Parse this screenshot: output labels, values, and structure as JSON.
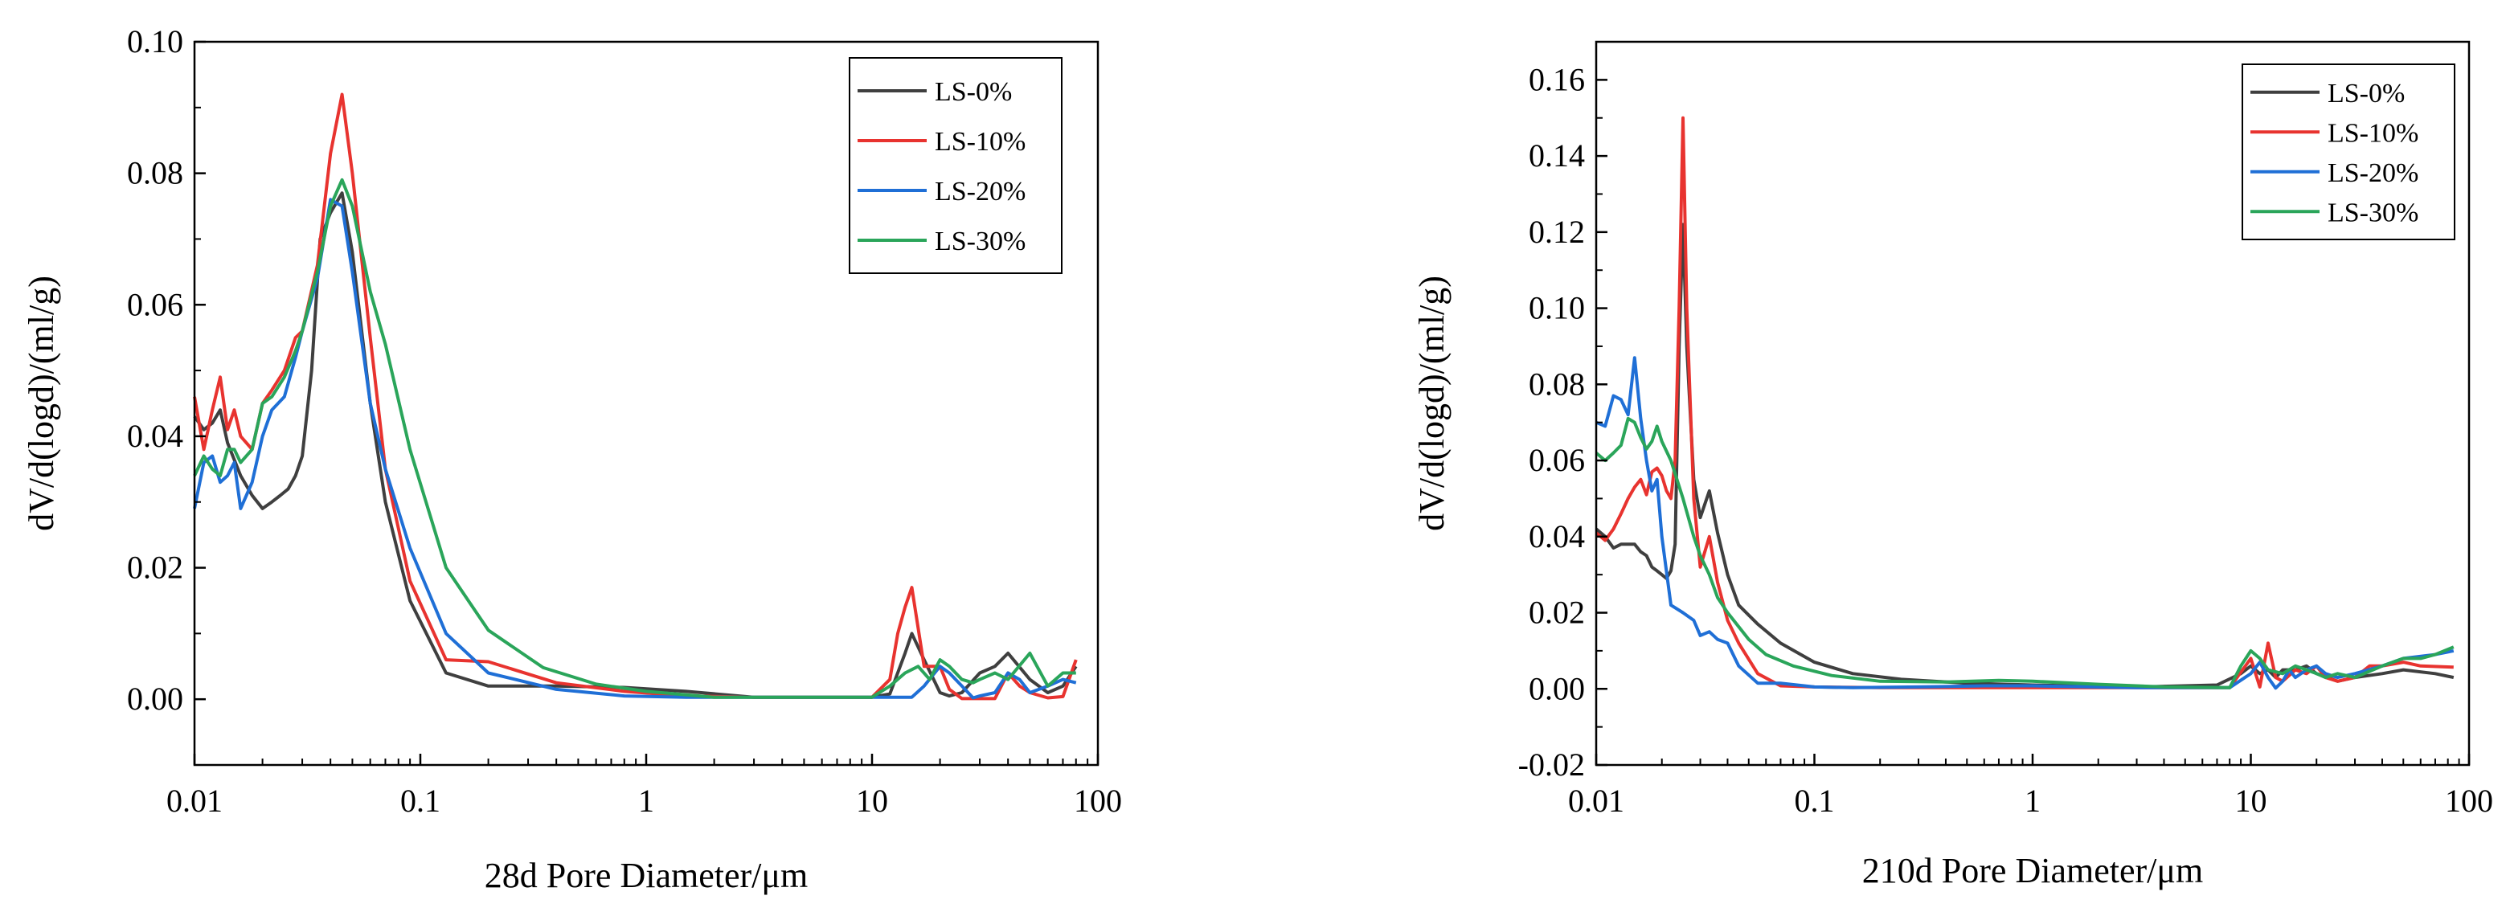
{
  "chart_data": [
    {
      "type": "line",
      "xscale": "log",
      "xlabel": "28d Pore Diameter/μm",
      "ylabel": "dV/d(logd)/(ml/g)",
      "xlim": [
        0.01,
        100
      ],
      "ylim": [
        -0.01,
        0.1
      ],
      "xticks": [
        0.01,
        0.1,
        1,
        10,
        100
      ],
      "xtick_labels": [
        "0.01",
        "0.1",
        "1",
        "10",
        "100"
      ],
      "yticks": [
        0.0,
        0.02,
        0.04,
        0.06,
        0.08,
        0.1
      ],
      "ytick_labels": [
        "0.00",
        "0.02",
        "0.04",
        "0.06",
        "0.08",
        "0.10"
      ],
      "grid": false,
      "legend_position": "top-right",
      "series": [
        {
          "name": "LS-0%",
          "color": "#3f3f3f",
          "x": [
            0.01,
            0.011,
            0.012,
            0.013,
            0.014,
            0.016,
            0.018,
            0.02,
            0.022,
            0.024,
            0.026,
            0.028,
            0.03,
            0.033,
            0.036,
            0.04,
            0.045,
            0.05,
            0.06,
            0.07,
            0.09,
            0.13,
            0.2,
            0.4,
            0.8,
            1.5,
            3,
            6,
            10,
            12,
            14,
            15,
            17,
            20,
            22,
            25,
            30,
            35,
            40,
            50,
            60,
            70,
            80
          ],
          "y": [
            0.043,
            0.041,
            0.042,
            0.044,
            0.039,
            0.034,
            0.031,
            0.029,
            0.03,
            0.031,
            0.032,
            0.034,
            0.037,
            0.05,
            0.07,
            0.074,
            0.077,
            0.068,
            0.045,
            0.03,
            0.015,
            0.004,
            0.002,
            0.002,
            0.0018,
            0.0012,
            0.0003,
            0.0003,
            0.0003,
            0.0008,
            0.007,
            0.01,
            0.006,
            0.001,
            0.0005,
            0.001,
            0.004,
            0.005,
            0.007,
            0.003,
            0.001,
            0.002,
            0.005
          ]
        },
        {
          "name": "LS-10%",
          "color": "#e8332f",
          "x": [
            0.01,
            0.011,
            0.012,
            0.013,
            0.014,
            0.015,
            0.016,
            0.018,
            0.02,
            0.022,
            0.025,
            0.028,
            0.03,
            0.035,
            0.04,
            0.045,
            0.05,
            0.06,
            0.07,
            0.09,
            0.13,
            0.2,
            0.4,
            0.8,
            1.5,
            3,
            6,
            10,
            12,
            13,
            14,
            15,
            17,
            20,
            22,
            25,
            30,
            35,
            40,
            45,
            50,
            60,
            70,
            80
          ],
          "y": [
            0.046,
            0.038,
            0.044,
            0.049,
            0.041,
            0.044,
            0.04,
            0.038,
            0.045,
            0.047,
            0.05,
            0.055,
            0.056,
            0.066,
            0.083,
            0.092,
            0.08,
            0.055,
            0.035,
            0.018,
            0.006,
            0.0057,
            0.0025,
            0.0012,
            0.0005,
            0.0003,
            0.0003,
            0.0003,
            0.003,
            0.01,
            0.014,
            0.017,
            0.005,
            0.005,
            0.0015,
            0.0001,
            0.0001,
            0.0001,
            0.004,
            0.002,
            0.001,
            0.0002,
            0.0004,
            0.006
          ]
        },
        {
          "name": "LS-20%",
          "color": "#1f6fd6",
          "x": [
            0.01,
            0.011,
            0.012,
            0.013,
            0.014,
            0.015,
            0.016,
            0.018,
            0.02,
            0.022,
            0.025,
            0.028,
            0.03,
            0.035,
            0.04,
            0.045,
            0.05,
            0.06,
            0.07,
            0.09,
            0.13,
            0.2,
            0.4,
            0.8,
            1.5,
            3,
            6,
            10,
            12,
            14,
            15,
            17,
            20,
            22,
            25,
            28,
            30,
            35,
            40,
            45,
            50,
            60,
            70,
            80
          ],
          "y": [
            0.029,
            0.036,
            0.037,
            0.033,
            0.034,
            0.036,
            0.029,
            0.033,
            0.04,
            0.044,
            0.046,
            0.052,
            0.056,
            0.064,
            0.076,
            0.075,
            0.065,
            0.045,
            0.035,
            0.023,
            0.01,
            0.004,
            0.0015,
            0.0005,
            0.0003,
            0.0003,
            0.0003,
            0.0003,
            0.0003,
            0.0003,
            0.0003,
            0.002,
            0.005,
            0.004,
            0.002,
            0.0002,
            0.0005,
            0.001,
            0.004,
            0.003,
            0.001,
            0.002,
            0.003,
            0.0025
          ]
        },
        {
          "name": "LS-30%",
          "color": "#2aa55a",
          "x": [
            0.01,
            0.011,
            0.012,
            0.013,
            0.014,
            0.015,
            0.016,
            0.018,
            0.02,
            0.022,
            0.025,
            0.028,
            0.03,
            0.035,
            0.04,
            0.045,
            0.05,
            0.06,
            0.07,
            0.09,
            0.13,
            0.2,
            0.35,
            0.6,
            1,
            2,
            3,
            5,
            10,
            12,
            14,
            16,
            18,
            20,
            22,
            25,
            28,
            30,
            35,
            40,
            50,
            60,
            70,
            80
          ],
          "y": [
            0.034,
            0.037,
            0.035,
            0.034,
            0.038,
            0.038,
            0.036,
            0.038,
            0.045,
            0.046,
            0.049,
            0.053,
            0.056,
            0.065,
            0.075,
            0.079,
            0.075,
            0.062,
            0.054,
            0.038,
            0.02,
            0.0105,
            0.0048,
            0.0023,
            0.0012,
            0.0003,
            0.0003,
            0.0003,
            0.0003,
            0.002,
            0.004,
            0.005,
            0.003,
            0.006,
            0.005,
            0.003,
            0.0025,
            0.003,
            0.004,
            0.003,
            0.007,
            0.002,
            0.004,
            0.004
          ]
        }
      ]
    },
    {
      "type": "line",
      "xscale": "log",
      "xlabel": "210d Pore Diameter/μm",
      "ylabel": "dV/d(logd)/(ml/g)",
      "xlim": [
        0.01,
        100
      ],
      "ylim": [
        -0.02,
        0.17
      ],
      "xticks": [
        0.01,
        0.1,
        1,
        10,
        100
      ],
      "xtick_labels": [
        "0.01",
        "0.1",
        "1",
        "10",
        "100"
      ],
      "yticks": [
        -0.02,
        0.0,
        0.02,
        0.04,
        0.06,
        0.08,
        0.1,
        0.12,
        0.14,
        0.16
      ],
      "ytick_labels": [
        "-0.02",
        "0.00",
        "0.02",
        "0.04",
        "0.06",
        "0.08",
        "0.10",
        "0.12",
        "0.14",
        "0.16"
      ],
      "grid": false,
      "legend_position": "top-right",
      "series": [
        {
          "name": "LS-0%",
          "color": "#3f3f3f",
          "x": [
            0.01,
            0.011,
            0.012,
            0.013,
            0.014,
            0.015,
            0.016,
            0.017,
            0.018,
            0.019,
            0.02,
            0.021,
            0.022,
            0.023,
            0.024,
            0.025,
            0.026,
            0.028,
            0.03,
            0.033,
            0.036,
            0.04,
            0.045,
            0.055,
            0.07,
            0.1,
            0.15,
            0.25,
            0.5,
            1,
            3,
            7,
            9,
            10,
            11,
            12,
            13,
            14,
            16,
            18,
            20,
            25,
            30,
            40,
            50,
            70,
            85
          ],
          "y": [
            0.042,
            0.04,
            0.037,
            0.038,
            0.038,
            0.038,
            0.036,
            0.035,
            0.032,
            0.031,
            0.03,
            0.029,
            0.031,
            0.038,
            0.09,
            0.122,
            0.09,
            0.055,
            0.045,
            0.052,
            0.041,
            0.03,
            0.022,
            0.017,
            0.012,
            0.007,
            0.004,
            0.0025,
            0.0015,
            0.001,
            0.0005,
            0.001,
            0.004,
            0.006,
            0.004,
            0.005,
            0.003,
            0.005,
            0.005,
            0.006,
            0.004,
            0.002,
            0.003,
            0.004,
            0.005,
            0.004,
            0.003
          ]
        },
        {
          "name": "LS-10%",
          "color": "#e8332f",
          "x": [
            0.01,
            0.011,
            0.012,
            0.013,
            0.014,
            0.015,
            0.016,
            0.017,
            0.018,
            0.019,
            0.02,
            0.021,
            0.022,
            0.023,
            0.024,
            0.025,
            0.026,
            0.028,
            0.03,
            0.033,
            0.036,
            0.04,
            0.045,
            0.055,
            0.07,
            0.1,
            0.2,
            0.5,
            1,
            3,
            8,
            10,
            11,
            12,
            13,
            14,
            16,
            18,
            20,
            22,
            25,
            30,
            35,
            40,
            50,
            60,
            85
          ],
          "y": [
            0.041,
            0.039,
            0.042,
            0.046,
            0.05,
            0.053,
            0.055,
            0.051,
            0.057,
            0.058,
            0.056,
            0.052,
            0.05,
            0.06,
            0.1,
            0.15,
            0.1,
            0.05,
            0.032,
            0.04,
            0.028,
            0.018,
            0.012,
            0.004,
            0.0008,
            0.0005,
            0.0003,
            0.0003,
            0.0003,
            0.0003,
            0.0003,
            0.008,
            0.0005,
            0.012,
            0.003,
            0.002,
            0.005,
            0.004,
            0.006,
            0.003,
            0.002,
            0.003,
            0.006,
            0.006,
            0.007,
            0.006,
            0.0057
          ]
        },
        {
          "name": "LS-20%",
          "color": "#1f6fd6",
          "x": [
            0.01,
            0.011,
            0.012,
            0.013,
            0.014,
            0.015,
            0.016,
            0.017,
            0.018,
            0.019,
            0.02,
            0.022,
            0.025,
            0.028,
            0.03,
            0.033,
            0.036,
            0.04,
            0.045,
            0.055,
            0.07,
            0.1,
            0.15,
            0.3,
            0.6,
            1,
            3,
            8,
            10,
            11,
            12,
            13,
            14,
            15,
            16,
            18,
            20,
            22,
            25,
            30,
            40,
            50,
            70,
            85
          ],
          "y": [
            0.07,
            0.069,
            0.077,
            0.076,
            0.072,
            0.087,
            0.071,
            0.06,
            0.052,
            0.055,
            0.04,
            0.022,
            0.02,
            0.018,
            0.014,
            0.015,
            0.013,
            0.012,
            0.006,
            0.0015,
            0.0015,
            0.0005,
            0.0003,
            0.0005,
            0.0008,
            0.0008,
            0.0003,
            0.0003,
            0.004,
            0.007,
            0.003,
            0.0002,
            0.002,
            0.005,
            0.003,
            0.005,
            0.006,
            0.004,
            0.003,
            0.004,
            0.006,
            0.008,
            0.009,
            0.01
          ]
        },
        {
          "name": "LS-30%",
          "color": "#2aa55a",
          "x": [
            0.01,
            0.011,
            0.012,
            0.013,
            0.014,
            0.015,
            0.016,
            0.017,
            0.018,
            0.019,
            0.02,
            0.022,
            0.025,
            0.028,
            0.03,
            0.033,
            0.036,
            0.04,
            0.05,
            0.06,
            0.08,
            0.12,
            0.2,
            0.4,
            0.7,
            1,
            2,
            4,
            8,
            9,
            10,
            11,
            12,
            14,
            16,
            18,
            20,
            22,
            25,
            30,
            40,
            50,
            60,
            70,
            85
          ],
          "y": [
            0.062,
            0.06,
            0.062,
            0.064,
            0.071,
            0.07,
            0.066,
            0.063,
            0.065,
            0.069,
            0.065,
            0.06,
            0.05,
            0.04,
            0.035,
            0.03,
            0.024,
            0.02,
            0.013,
            0.009,
            0.006,
            0.0035,
            0.002,
            0.0018,
            0.0022,
            0.002,
            0.0012,
            0.0005,
            0.0003,
            0.006,
            0.01,
            0.008,
            0.005,
            0.004,
            0.006,
            0.005,
            0.004,
            0.003,
            0.004,
            0.003,
            0.006,
            0.008,
            0.008,
            0.009,
            0.011
          ]
        }
      ]
    }
  ]
}
